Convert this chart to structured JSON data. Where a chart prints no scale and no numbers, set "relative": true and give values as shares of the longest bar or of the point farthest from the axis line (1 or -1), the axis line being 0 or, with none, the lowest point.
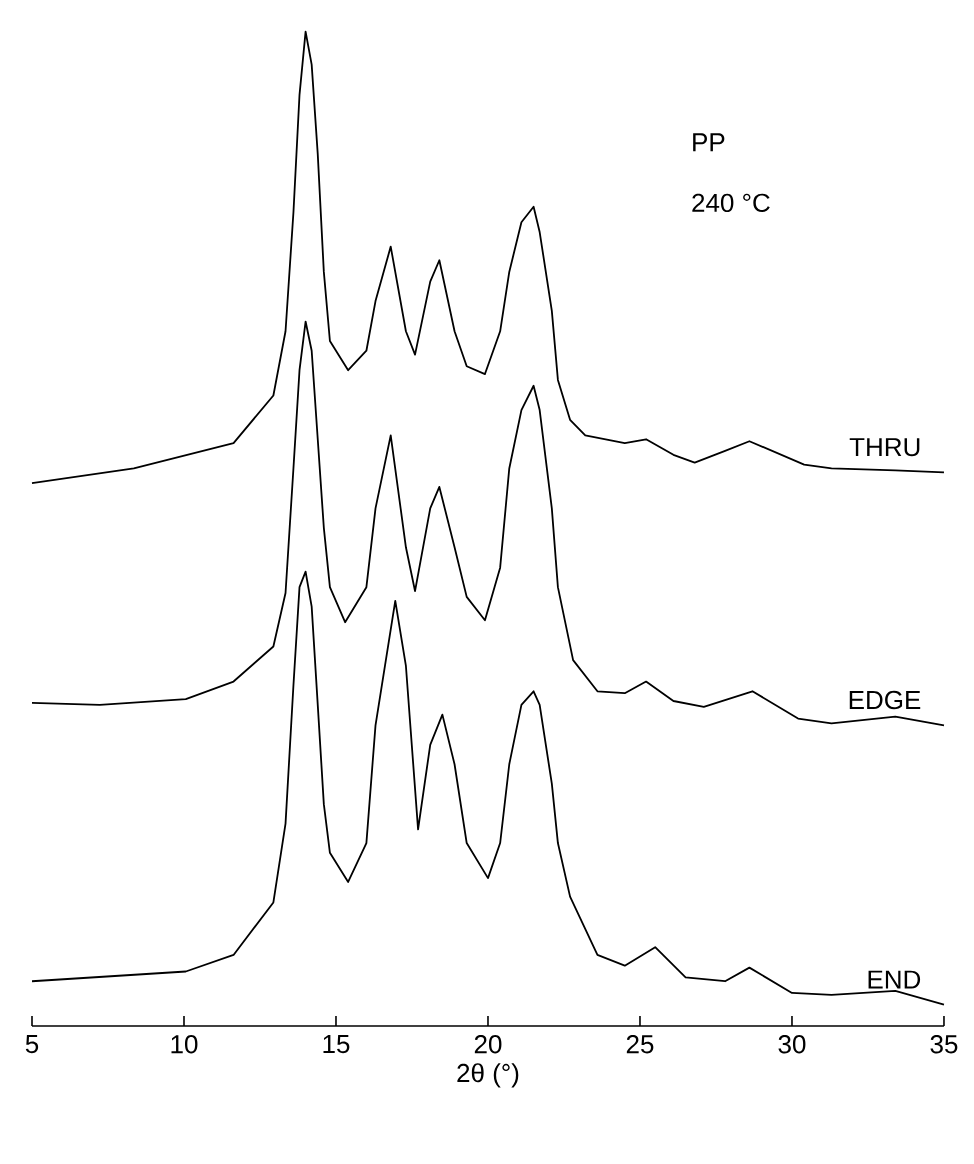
{
  "chart_data": {
    "type": "line",
    "relative": true,
    "xlabel": "2θ (°)",
    "xlim": [
      5,
      35
    ],
    "xticks": [
      5,
      10,
      15,
      20,
      25,
      30,
      35
    ],
    "legend": false,
    "annotations": [
      "PP",
      "240 °C"
    ],
    "series": [
      {
        "name": "THRU",
        "color": "#000000",
        "x": [
          5.0,
          8.35,
          11.63,
          12.94,
          13.34,
          13.6,
          13.8,
          14.0,
          14.2,
          14.4,
          14.6,
          14.8,
          15.4,
          16.0,
          16.3,
          16.8,
          17.3,
          17.6,
          18.1,
          18.4,
          18.9,
          19.3,
          19.9,
          20.4,
          20.7,
          21.1,
          21.5,
          21.7,
          22.1,
          22.3,
          22.7,
          23.2,
          24.5,
          25.2,
          26.1,
          26.8,
          27.8,
          28.6,
          30.4,
          31.3,
          33.4,
          35.0
        ],
        "values": [
          0.536,
          0.551,
          0.577,
          0.626,
          0.692,
          0.814,
          0.935,
          1.0,
          0.966,
          0.874,
          0.753,
          0.682,
          0.652,
          0.672,
          0.723,
          0.779,
          0.692,
          0.668,
          0.743,
          0.765,
          0.692,
          0.656,
          0.648,
          0.692,
          0.753,
          0.804,
          0.82,
          0.794,
          0.713,
          0.642,
          0.601,
          0.585,
          0.577,
          0.581,
          0.565,
          0.557,
          0.569,
          0.579,
          0.555,
          0.551,
          0.549,
          0.547
        ]
      },
      {
        "name": "EDGE",
        "color": "#000000",
        "x": [
          5.0,
          7.23,
          10.06,
          11.63,
          12.94,
          13.34,
          13.6,
          13.8,
          14.0,
          14.2,
          14.4,
          14.6,
          14.8,
          15.3,
          16.0,
          16.3,
          16.8,
          17.3,
          17.6,
          18.1,
          18.4,
          18.9,
          19.3,
          19.9,
          20.4,
          20.7,
          21.1,
          21.5,
          21.7,
          22.1,
          22.3,
          22.8,
          23.6,
          24.5,
          25.2,
          26.1,
          27.1,
          28.7,
          30.2,
          31.3,
          33.4,
          35.0
        ],
        "values": [
          0.31,
          0.308,
          0.314,
          0.332,
          0.368,
          0.423,
          0.551,
          0.652,
          0.702,
          0.672,
          0.581,
          0.49,
          0.429,
          0.393,
          0.429,
          0.51,
          0.585,
          0.47,
          0.425,
          0.51,
          0.532,
          0.47,
          0.419,
          0.395,
          0.449,
          0.551,
          0.611,
          0.636,
          0.611,
          0.51,
          0.429,
          0.354,
          0.322,
          0.32,
          0.332,
          0.312,
          0.306,
          0.322,
          0.294,
          0.289,
          0.296,
          0.287
        ]
      },
      {
        "name": "END",
        "color": "#000000",
        "x": [
          5.0,
          10.06,
          11.63,
          12.94,
          13.34,
          13.6,
          13.8,
          14.0,
          14.2,
          14.4,
          14.6,
          14.8,
          15.4,
          16.0,
          16.3,
          16.95,
          17.3,
          17.7,
          18.1,
          18.5,
          18.9,
          19.3,
          20.0,
          20.4,
          20.7,
          21.1,
          21.5,
          21.7,
          22.1,
          22.3,
          22.7,
          23.6,
          24.5,
          25.5,
          26.5,
          27.8,
          28.6,
          30.0,
          31.3,
          33.4,
          35.0
        ],
        "values": [
          0.024,
          0.034,
          0.051,
          0.105,
          0.186,
          0.328,
          0.429,
          0.445,
          0.409,
          0.308,
          0.206,
          0.156,
          0.126,
          0.166,
          0.287,
          0.415,
          0.348,
          0.18,
          0.267,
          0.298,
          0.247,
          0.166,
          0.13,
          0.166,
          0.247,
          0.308,
          0.322,
          0.308,
          0.227,
          0.166,
          0.111,
          0.051,
          0.04,
          0.059,
          0.028,
          0.024,
          0.038,
          0.012,
          0.01,
          0.014,
          0.0
        ]
      }
    ]
  }
}
